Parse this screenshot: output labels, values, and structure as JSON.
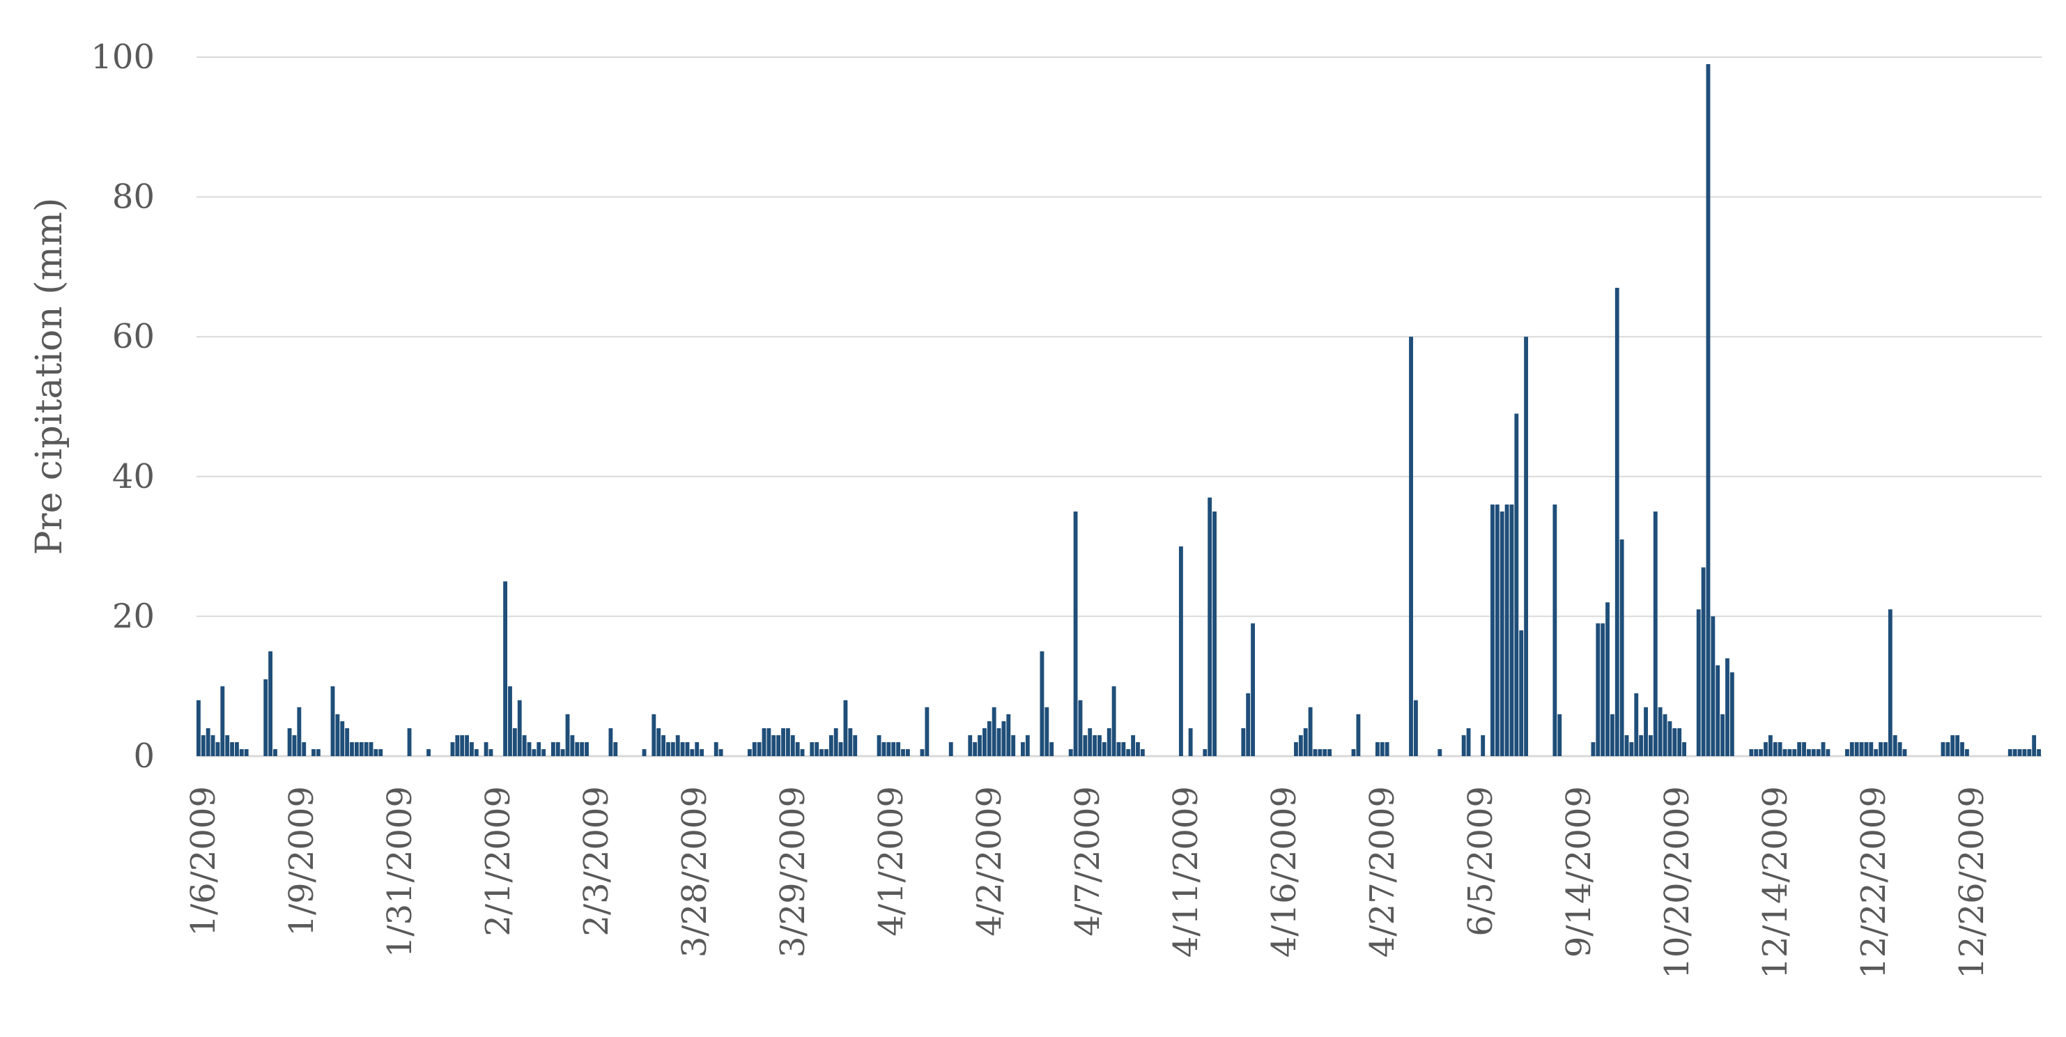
{
  "chart_data": {
    "type": "bar",
    "title": "",
    "xlabel": "",
    "ylabel": "Pre cipitation  (mm)",
    "ylim": [
      0,
      100
    ],
    "yticks": [
      0,
      20,
      40,
      60,
      80,
      100
    ],
    "grid": true,
    "legend": "none",
    "bar_color": "#1f4e79",
    "grid_color": "#d9d9d9",
    "text_color": "#595959",
    "x_tick_labels": [
      "1/6/2009",
      "1/9/2009",
      "1/31/2009",
      "2/1/2009",
      "2/3/2009",
      "3/28/2009",
      "3/29/2009",
      "4/1/2009",
      "4/2/2009",
      "4/7/2009",
      "4/11/2009",
      "4/16/2009",
      "4/27/2009",
      "6/5/2009",
      "9/14/2009",
      "10/20/2009",
      "12/14/2009",
      "12/22/2009",
      "12/26/2009"
    ],
    "values": [
      8,
      3,
      4,
      3,
      2,
      10,
      3,
      2,
      2,
      1,
      1,
      0,
      0,
      0,
      11,
      15,
      1,
      0,
      0,
      4,
      3,
      7,
      2,
      0,
      1,
      1,
      0,
      0,
      10,
      6,
      5,
      4,
      2,
      2,
      2,
      2,
      2,
      1,
      1,
      0,
      0,
      0,
      0,
      0,
      4,
      0,
      0,
      0,
      1,
      0,
      0,
      0,
      0,
      2,
      3,
      3,
      3,
      2,
      1,
      0,
      2,
      1,
      0,
      0,
      25,
      10,
      4,
      8,
      3,
      2,
      1,
      2,
      1,
      0,
      2,
      2,
      1,
      6,
      3,
      2,
      2,
      2,
      0,
      0,
      0,
      0,
      4,
      2,
      0,
      0,
      0,
      0,
      0,
      1,
      0,
      6,
      4,
      3,
      2,
      2,
      3,
      2,
      2,
      1,
      2,
      1,
      0,
      0,
      2,
      1,
      0,
      0,
      0,
      0,
      0,
      1,
      2,
      2,
      4,
      4,
      3,
      3,
      4,
      4,
      3,
      2,
      1,
      0,
      2,
      2,
      1,
      1,
      3,
      4,
      2,
      8,
      4,
      3,
      0,
      0,
      0,
      0,
      3,
      2,
      2,
      2,
      2,
      1,
      1,
      0,
      0,
      1,
      7,
      0,
      0,
      0,
      0,
      2,
      0,
      0,
      0,
      3,
      2,
      3,
      4,
      5,
      7,
      4,
      5,
      6,
      3,
      0,
      2,
      3,
      0,
      0,
      15,
      7,
      2,
      0,
      0,
      0,
      1,
      35,
      8,
      3,
      4,
      3,
      3,
      2,
      4,
      10,
      2,
      2,
      1,
      3,
      2,
      1,
      0,
      0,
      0,
      0,
      0,
      0,
      0,
      30,
      0,
      4,
      0,
      0,
      1,
      37,
      35,
      0,
      0,
      0,
      0,
      0,
      4,
      9,
      19,
      0,
      0,
      0,
      0,
      0,
      0,
      0,
      0,
      2,
      3,
      4,
      7,
      1,
      1,
      1,
      1,
      0,
      0,
      0,
      0,
      1,
      6,
      0,
      0,
      0,
      2,
      2,
      2,
      0,
      0,
      0,
      0,
      60,
      8,
      0,
      0,
      0,
      0,
      1,
      0,
      0,
      0,
      0,
      3,
      4,
      0,
      0,
      3,
      0,
      36,
      36,
      35,
      36,
      36,
      49,
      18,
      60,
      0,
      0,
      0,
      0,
      0,
      36,
      6,
      0,
      0,
      0,
      0,
      0,
      0,
      2,
      19,
      19,
      22,
      6,
      67,
      31,
      3,
      2,
      9,
      3,
      7,
      3,
      35,
      7,
      6,
      5,
      4,
      4,
      2,
      0,
      0,
      21,
      27,
      99,
      20,
      13,
      6,
      14,
      12,
      0,
      0,
      0,
      1,
      1,
      1,
      2,
      3,
      2,
      2,
      1,
      1,
      1,
      2,
      2,
      1,
      1,
      1,
      2,
      1,
      0,
      0,
      0,
      1,
      2,
      2,
      2,
      2,
      2,
      1,
      2,
      2,
      21,
      3,
      2,
      1,
      0,
      0,
      0,
      0,
      0,
      0,
      0,
      2,
      2,
      3,
      3,
      2,
      1,
      0,
      0,
      0,
      0,
      0,
      0,
      0,
      0,
      1,
      1,
      1,
      1,
      1,
      3,
      1
    ]
  }
}
